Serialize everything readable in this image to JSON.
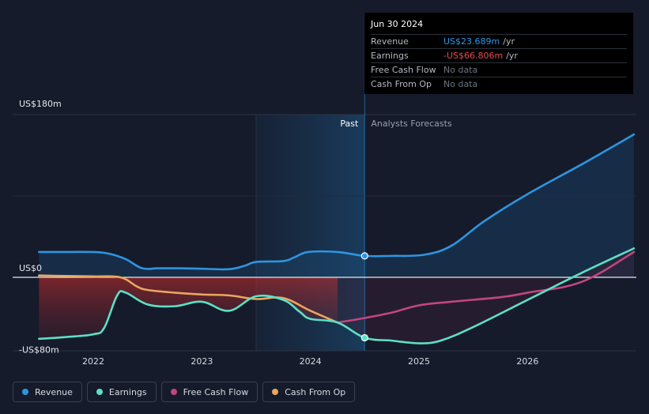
{
  "chart_data": {
    "type": "line",
    "title": "",
    "y_axis": {
      "labels": [
        "US$180m",
        "US$0",
        "-US$80m"
      ],
      "range": [
        -80,
        180
      ],
      "unit": "US$m"
    },
    "x_axis": {
      "ticks": [
        "2022",
        "2023",
        "2024",
        "2025",
        "2026"
      ],
      "range": [
        2021.5,
        2026.98
      ]
    },
    "regions": {
      "past_label": "Past",
      "forecast_label": "Analysts Forecasts",
      "divider_x": 2024.5
    },
    "series": [
      {
        "name": "Revenue",
        "color": "#2e95e0",
        "points": [
          [
            2021.5,
            28
          ],
          [
            2021.75,
            28
          ],
          [
            2022.0,
            28
          ],
          [
            2022.15,
            26
          ],
          [
            2022.3,
            20
          ],
          [
            2022.45,
            10
          ],
          [
            2022.6,
            10
          ],
          [
            2022.8,
            10
          ],
          [
            2023.0,
            9.5
          ],
          [
            2023.25,
            9
          ],
          [
            2023.4,
            13
          ],
          [
            2023.5,
            17
          ],
          [
            2023.75,
            18
          ],
          [
            2023.85,
            22
          ],
          [
            2023.98,
            28
          ],
          [
            2024.25,
            28
          ],
          [
            2024.5,
            23.7
          ],
          [
            2024.75,
            23.7
          ],
          [
            2025.05,
            25
          ],
          [
            2025.3,
            35
          ],
          [
            2025.6,
            62
          ],
          [
            2026.0,
            92
          ],
          [
            2026.5,
            125
          ],
          [
            2026.98,
            158
          ]
        ]
      },
      {
        "name": "Earnings",
        "color": "#5ce0c6",
        "points": [
          [
            2021.5,
            -68
          ],
          [
            2021.75,
            -66
          ],
          [
            2022.0,
            -63
          ],
          [
            2022.1,
            -56
          ],
          [
            2022.22,
            -20
          ],
          [
            2022.3,
            -17
          ],
          [
            2022.5,
            -30
          ],
          [
            2022.75,
            -32
          ],
          [
            2023.0,
            -27
          ],
          [
            2023.25,
            -37
          ],
          [
            2023.5,
            -21
          ],
          [
            2023.75,
            -25
          ],
          [
            2023.9,
            -38
          ],
          [
            2024.0,
            -46
          ],
          [
            2024.25,
            -50
          ],
          [
            2024.5,
            -66.8
          ],
          [
            2024.75,
            -70
          ],
          [
            2025.0,
            -73
          ],
          [
            2025.2,
            -70
          ],
          [
            2025.5,
            -55
          ],
          [
            2026.0,
            -25
          ],
          [
            2026.5,
            5
          ],
          [
            2026.98,
            32
          ]
        ]
      },
      {
        "name": "Free Cash Flow",
        "color": "#c2467f",
        "points": [
          [
            2024.25,
            -50
          ],
          [
            2024.5,
            -45
          ],
          [
            2024.75,
            -39
          ],
          [
            2025.0,
            -31
          ],
          [
            2025.3,
            -27
          ],
          [
            2025.75,
            -22
          ],
          [
            2026.0,
            -17
          ],
          [
            2026.5,
            -5
          ],
          [
            2026.98,
            28
          ]
        ]
      },
      {
        "name": "Cash From Op",
        "color": "#e9a75e",
        "points": [
          [
            2021.5,
            2
          ],
          [
            2021.75,
            1.5
          ],
          [
            2022.0,
            1
          ],
          [
            2022.25,
            0
          ],
          [
            2022.4,
            -10
          ],
          [
            2022.5,
            -14
          ],
          [
            2022.75,
            -17
          ],
          [
            2023.0,
            -19
          ],
          [
            2023.25,
            -20
          ],
          [
            2023.5,
            -24
          ],
          [
            2023.75,
            -23
          ],
          [
            2024.0,
            -37
          ],
          [
            2024.25,
            -50
          ]
        ]
      }
    ],
    "highlight": {
      "date": "Jun 30 2024",
      "x": 2024.5,
      "revenue": 23.7,
      "earnings": -66.8
    }
  },
  "tooltip": {
    "date": "Jun 30 2024",
    "rows": [
      {
        "label": "Revenue",
        "value": "US$23.689m",
        "unit": "/yr",
        "color": "#2e95e0"
      },
      {
        "label": "Earnings",
        "value": "-US$66.806m",
        "unit": "/yr",
        "color": "#e8484f"
      },
      {
        "label": "Free Cash Flow",
        "value": "No data",
        "unit": "",
        "color": "#6f7480"
      },
      {
        "label": "Cash From Op",
        "value": "No data",
        "unit": "",
        "color": "#6f7480"
      }
    ]
  },
  "legend": [
    {
      "label": "Revenue",
      "color": "#2e95e0"
    },
    {
      "label": "Earnings",
      "color": "#5ce0c6"
    },
    {
      "label": "Free Cash Flow",
      "color": "#c2467f"
    },
    {
      "label": "Cash From Op",
      "color": "#e9a75e"
    }
  ]
}
